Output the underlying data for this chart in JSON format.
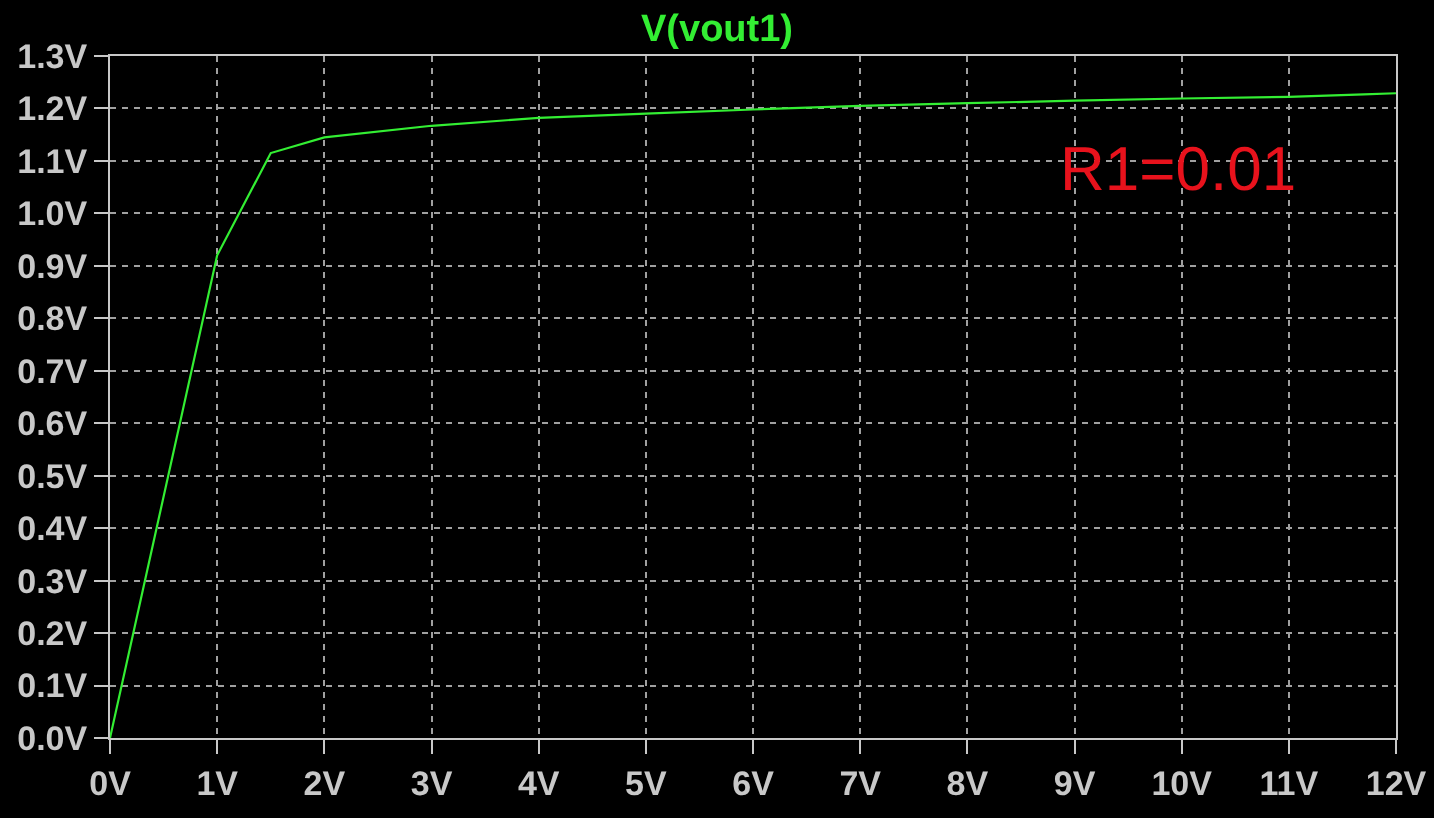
{
  "chart_data": {
    "type": "line",
    "title": "V(vout1)",
    "x": [
      0,
      1.0,
      1.5,
      2,
      3,
      4,
      5,
      6,
      7,
      8,
      9,
      10,
      11,
      11.7,
      12
    ],
    "series": [
      {
        "color": "#33ee33",
        "values": [
          0,
          0.92,
          1.115,
          1.145,
          1.167,
          1.182,
          1.19,
          1.198,
          1.205,
          1.21,
          1.215,
          1.219,
          1.222,
          1.227,
          1.229
        ]
      }
    ],
    "xlim": [
      0,
      12
    ],
    "ylim": [
      0,
      1.3
    ],
    "xticks": [
      {
        "value": 0,
        "label": "0V"
      },
      {
        "value": 1,
        "label": "1V"
      },
      {
        "value": 2,
        "label": "2V"
      },
      {
        "value": 3,
        "label": "3V"
      },
      {
        "value": 4,
        "label": "4V"
      },
      {
        "value": 5,
        "label": "5V"
      },
      {
        "value": 6,
        "label": "6V"
      },
      {
        "value": 7,
        "label": "7V"
      },
      {
        "value": 8,
        "label": "8V"
      },
      {
        "value": 9,
        "label": "9V"
      },
      {
        "value": 10,
        "label": "10V"
      },
      {
        "value": 11,
        "label": "11V"
      },
      {
        "value": 12,
        "label": "12V"
      }
    ],
    "yticks": [
      {
        "value": 0,
        "label": "0.0V"
      },
      {
        "value": 0.1,
        "label": "0.1V"
      },
      {
        "value": 0.2,
        "label": "0.2V"
      },
      {
        "value": 0.3,
        "label": "0.3V"
      },
      {
        "value": 0.4,
        "label": "0.4V"
      },
      {
        "value": 0.5,
        "label": "0.5V"
      },
      {
        "value": 0.6,
        "label": "0.6V"
      },
      {
        "value": 0.7,
        "label": "0.7V"
      },
      {
        "value": 0.8,
        "label": "0.8V"
      },
      {
        "value": 0.9,
        "label": "0.9V"
      },
      {
        "value": 1.0,
        "label": "1.0V"
      },
      {
        "value": 1.1,
        "label": "1.1V"
      },
      {
        "value": 1.2,
        "label": "1.2V"
      },
      {
        "value": 1.3,
        "label": "1.3V"
      }
    ],
    "grid": true,
    "marker": "none",
    "line_style": "solid",
    "annotations": [
      "R1=0.01"
    ]
  }
}
